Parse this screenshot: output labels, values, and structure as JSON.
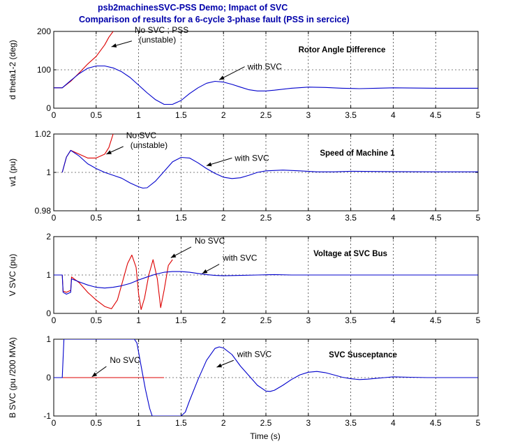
{
  "figure": {
    "title_lines": [
      "psb2machinesSVC-PSS Demo;  Impact of SVC",
      "Comparison of results for a 6-cycle 3-phase fault (PSS in sercice)"
    ],
    "xlabel": "Time (s)"
  },
  "colors": {
    "with_svc": "#0000cc",
    "no_svc": "#dd0000",
    "axes": "#000000",
    "grid": "#000000"
  },
  "chart_data": [
    {
      "type": "line",
      "title": "Rotor Angle Difference",
      "ylabel": "d theta1-2 (deg)",
      "xlim": [
        0,
        5
      ],
      "ylim": [
        0,
        200
      ],
      "xticks": [
        0,
        0.5,
        1,
        1.5,
        2,
        2.5,
        3,
        3.5,
        4,
        4.5,
        5
      ],
      "xtick_labels": [
        "0",
        "0.5",
        "1",
        "1.5",
        "2",
        "2.5",
        "3",
        "3.5",
        "4",
        "4.5",
        "5"
      ],
      "yticks": [
        0,
        100,
        200
      ],
      "ytick_labels": [
        "0",
        "100",
        "200"
      ],
      "grid": true,
      "series": [
        {
          "key": "no_svc",
          "points": [
            [
              0,
              53
            ],
            [
              0.1,
              53
            ],
            [
              0.2,
              70
            ],
            [
              0.3,
              92
            ],
            [
              0.4,
              115
            ],
            [
              0.5,
              135
            ],
            [
              0.6,
              165
            ],
            [
              0.65,
              185
            ],
            [
              0.7,
              200
            ]
          ]
        },
        {
          "key": "with_svc",
          "points": [
            [
              0,
              53
            ],
            [
              0.1,
              53
            ],
            [
              0.2,
              72
            ],
            [
              0.3,
              90
            ],
            [
              0.4,
              104
            ],
            [
              0.5,
              110
            ],
            [
              0.6,
              110
            ],
            [
              0.7,
              105
            ],
            [
              0.8,
              95
            ],
            [
              0.9,
              80
            ],
            [
              1.0,
              60
            ],
            [
              1.1,
              40
            ],
            [
              1.2,
              22
            ],
            [
              1.3,
              10
            ],
            [
              1.4,
              10
            ],
            [
              1.5,
              20
            ],
            [
              1.6,
              38
            ],
            [
              1.7,
              53
            ],
            [
              1.8,
              65
            ],
            [
              1.9,
              70
            ],
            [
              2.0,
              68
            ],
            [
              2.1,
              62
            ],
            [
              2.2,
              55
            ],
            [
              2.3,
              48
            ],
            [
              2.4,
              45
            ],
            [
              2.5,
              45
            ],
            [
              2.6,
              47
            ],
            [
              2.8,
              52
            ],
            [
              3.0,
              55
            ],
            [
              3.2,
              54
            ],
            [
              3.4,
              52
            ],
            [
              3.6,
              51
            ],
            [
              3.8,
              52
            ],
            [
              4.0,
              53
            ],
            [
              4.5,
              52
            ],
            [
              5.0,
              52
            ]
          ]
        }
      ],
      "annotations": [
        {
          "lines": [
            "No SVC ;  PSS",
            "(unstable)"
          ],
          "arrow_from": [
            0.92,
            175
          ],
          "arrow_to": [
            0.68,
            160
          ]
        },
        {
          "lines": [
            "with SVC"
          ],
          "arrow_from": [
            2.25,
            108
          ],
          "arrow_to": [
            1.95,
            74
          ]
        }
      ]
    },
    {
      "type": "line",
      "title": "Speed of Machine 1",
      "ylabel": "w1 (pu)",
      "xlim": [
        0,
        5
      ],
      "ylim": [
        0.98,
        1.02
      ],
      "xticks": [
        0,
        0.5,
        1,
        1.5,
        2,
        2.5,
        3,
        3.5,
        4,
        4.5,
        5
      ],
      "xtick_labels": [
        "0",
        "0.5",
        "1",
        "1.5",
        "2",
        "2.5",
        "3",
        "3.5",
        "4",
        "4.5",
        "5"
      ],
      "yticks": [
        0.98,
        1.0,
        1.02
      ],
      "ytick_labels": [
        "0.98",
        "1",
        "1.02"
      ],
      "grid": true,
      "series": [
        {
          "key": "no_svc",
          "points": [
            [
              0.1,
              1.0
            ],
            [
              0.15,
              1.008
            ],
            [
              0.2,
              1.0115
            ],
            [
              0.3,
              1.0095
            ],
            [
              0.4,
              1.0075
            ],
            [
              0.5,
              1.0075
            ],
            [
              0.6,
              1.0095
            ],
            [
              0.65,
              1.013
            ],
            [
              0.7,
              1.02
            ]
          ]
        },
        {
          "key": "with_svc",
          "points": [
            [
              0.1,
              1.0
            ],
            [
              0.15,
              1.008
            ],
            [
              0.2,
              1.0115
            ],
            [
              0.3,
              1.0085
            ],
            [
              0.4,
              1.0045
            ],
            [
              0.5,
              1.002
            ],
            [
              0.6,
              1.0
            ],
            [
              0.7,
              0.9985
            ],
            [
              0.8,
              0.997
            ],
            [
              0.9,
              0.9945
            ],
            [
              1.0,
              0.9925
            ],
            [
              1.05,
              0.9918
            ],
            [
              1.1,
              0.992
            ],
            [
              1.2,
              0.9955
            ],
            [
              1.3,
              1.0005
            ],
            [
              1.4,
              1.0055
            ],
            [
              1.5,
              1.0078
            ],
            [
              1.6,
              1.0075
            ],
            [
              1.7,
              1.005
            ],
            [
              1.8,
              1.002
            ],
            [
              1.9,
              0.9995
            ],
            [
              2.0,
              0.9975
            ],
            [
              2.1,
              0.9968
            ],
            [
              2.2,
              0.9972
            ],
            [
              2.3,
              0.9985
            ],
            [
              2.4,
              1.0
            ],
            [
              2.5,
              1.0008
            ],
            [
              2.7,
              1.0012
            ],
            [
              2.9,
              1.0008
            ],
            [
              3.1,
              1.0003
            ],
            [
              3.3,
              1.0003
            ],
            [
              3.5,
              1.0006
            ],
            [
              4.0,
              1.0004
            ],
            [
              4.5,
              1.0003
            ],
            [
              5.0,
              1.0003
            ]
          ]
        }
      ],
      "annotations": [
        {
          "lines": [
            "No SVC",
            "(unstable)"
          ],
          "arrow_from": [
            0.82,
            1.0135
          ],
          "arrow_to": [
            0.62,
            1.0095
          ]
        },
        {
          "lines": [
            "with SVC"
          ],
          "arrow_from": [
            2.1,
            1.0075
          ],
          "arrow_to": [
            1.8,
            1.0035
          ]
        }
      ]
    },
    {
      "type": "line",
      "title": "Voltage at  SVC Bus",
      "ylabel": "V SVC (pu)",
      "xlim": [
        0,
        5
      ],
      "ylim": [
        0,
        2
      ],
      "xticks": [
        0,
        0.5,
        1,
        1.5,
        2,
        2.5,
        3,
        3.5,
        4,
        4.5,
        5
      ],
      "xtick_labels": [
        "0",
        "0.5",
        "1",
        "1.5",
        "2",
        "2.5",
        "3",
        "3.5",
        "4",
        "4.5",
        "5"
      ],
      "yticks": [
        0,
        1,
        2
      ],
      "ytick_labels": [
        "0",
        "1",
        "2"
      ],
      "grid": true,
      "series": [
        {
          "key": "no_svc",
          "points": [
            [
              0,
              1.0
            ],
            [
              0.1,
              1.0
            ],
            [
              0.11,
              0.58
            ],
            [
              0.15,
              0.55
            ],
            [
              0.2,
              0.6
            ],
            [
              0.21,
              0.95
            ],
            [
              0.3,
              0.8
            ],
            [
              0.4,
              0.55
            ],
            [
              0.5,
              0.35
            ],
            [
              0.6,
              0.18
            ],
            [
              0.68,
              0.12
            ],
            [
              0.75,
              0.35
            ],
            [
              0.82,
              0.9
            ],
            [
              0.87,
              1.3
            ],
            [
              0.92,
              1.52
            ],
            [
              0.97,
              1.2
            ],
            [
              1.0,
              0.5
            ],
            [
              1.03,
              0.1
            ],
            [
              1.07,
              0.4
            ],
            [
              1.12,
              1.0
            ],
            [
              1.17,
              1.4
            ],
            [
              1.22,
              0.9
            ],
            [
              1.26,
              0.15
            ],
            [
              1.3,
              0.6
            ],
            [
              1.35,
              1.25
            ],
            [
              1.4,
              1.4
            ]
          ]
        },
        {
          "key": "with_svc",
          "points": [
            [
              0,
              1.0
            ],
            [
              0.1,
              1.0
            ],
            [
              0.11,
              0.55
            ],
            [
              0.15,
              0.5
            ],
            [
              0.2,
              0.55
            ],
            [
              0.21,
              0.9
            ],
            [
              0.3,
              0.82
            ],
            [
              0.4,
              0.74
            ],
            [
              0.5,
              0.68
            ],
            [
              0.6,
              0.66
            ],
            [
              0.7,
              0.68
            ],
            [
              0.8,
              0.72
            ],
            [
              0.9,
              0.78
            ],
            [
              1.0,
              0.87
            ],
            [
              1.1,
              0.95
            ],
            [
              1.2,
              1.02
            ],
            [
              1.3,
              1.07
            ],
            [
              1.4,
              1.09
            ],
            [
              1.5,
              1.09
            ],
            [
              1.6,
              1.07
            ],
            [
              1.7,
              1.04
            ],
            [
              1.8,
              1.01
            ],
            [
              1.9,
              0.99
            ],
            [
              2.0,
              0.98
            ],
            [
              2.2,
              0.99
            ],
            [
              2.4,
              1.0
            ],
            [
              2.6,
              1.01
            ],
            [
              2.8,
              1.0
            ],
            [
              3.2,
              1.0
            ],
            [
              4.0,
              1.0
            ],
            [
              5.0,
              1.0
            ]
          ]
        }
      ],
      "annotations": [
        {
          "lines": [
            "No SVC"
          ],
          "arrow_from": [
            1.62,
            1.73
          ],
          "arrow_to": [
            1.38,
            1.45
          ]
        },
        {
          "lines": [
            "with SVC"
          ],
          "arrow_from": [
            1.95,
            1.28
          ],
          "arrow_to": [
            1.75,
            1.04
          ]
        }
      ]
    },
    {
      "type": "line",
      "title": "SVC Susceptance",
      "ylabel": "B SVC (pu /200 MVA)",
      "xlim": [
        0,
        5
      ],
      "ylim": [
        -1,
        1
      ],
      "xticks": [
        0,
        0.5,
        1,
        1.5,
        2,
        2.5,
        3,
        3.5,
        4,
        4.5,
        5
      ],
      "xtick_labels": [
        "0",
        "0.5",
        "1",
        "1.5",
        "2",
        "2.5",
        "3",
        "3.5",
        "4",
        "4.5",
        "5"
      ],
      "yticks": [
        -1,
        0,
        1
      ],
      "ytick_labels": [
        "-1",
        "0",
        "1"
      ],
      "grid": true,
      "series": [
        {
          "key": "no_svc",
          "points": [
            [
              0,
              0
            ],
            [
              1.3,
              0
            ]
          ]
        },
        {
          "key": "with_svc",
          "points": [
            [
              0,
              0
            ],
            [
              0.1,
              0
            ],
            [
              0.12,
              1.0
            ],
            [
              0.95,
              1.0
            ],
            [
              0.98,
              0.9
            ],
            [
              1.03,
              0.3
            ],
            [
              1.08,
              -0.3
            ],
            [
              1.13,
              -0.8
            ],
            [
              1.16,
              -1.0
            ],
            [
              1.5,
              -1.0
            ],
            [
              1.55,
              -0.9
            ],
            [
              1.6,
              -0.6
            ],
            [
              1.7,
              -0.05
            ],
            [
              1.8,
              0.45
            ],
            [
              1.9,
              0.76
            ],
            [
              1.95,
              0.8
            ],
            [
              2.0,
              0.77
            ],
            [
              2.1,
              0.6
            ],
            [
              2.2,
              0.3
            ],
            [
              2.3,
              0.05
            ],
            [
              2.4,
              -0.2
            ],
            [
              2.5,
              -0.35
            ],
            [
              2.55,
              -0.36
            ],
            [
              2.6,
              -0.33
            ],
            [
              2.7,
              -0.2
            ],
            [
              2.8,
              -0.05
            ],
            [
              2.9,
              0.07
            ],
            [
              3.0,
              0.14
            ],
            [
              3.1,
              0.16
            ],
            [
              3.2,
              0.13
            ],
            [
              3.3,
              0.07
            ],
            [
              3.4,
              0.01
            ],
            [
              3.5,
              -0.03
            ],
            [
              3.6,
              -0.05
            ],
            [
              3.7,
              -0.04
            ],
            [
              3.8,
              -0.02
            ],
            [
              3.9,
              0.0
            ],
            [
              4.0,
              0.02
            ],
            [
              4.2,
              0.01
            ],
            [
              4.4,
              0.0
            ],
            [
              4.6,
              0.0
            ],
            [
              5.0,
              0.0
            ]
          ]
        }
      ],
      "annotations": [
        {
          "lines": [
            "No SVC"
          ],
          "arrow_from": [
            0.62,
            0.29
          ],
          "arrow_to": [
            0.45,
            0.02
          ]
        },
        {
          "lines": [
            "with SVC"
          ],
          "arrow_from": [
            2.12,
            0.45
          ],
          "arrow_to": [
            1.92,
            0.27
          ]
        }
      ]
    }
  ]
}
